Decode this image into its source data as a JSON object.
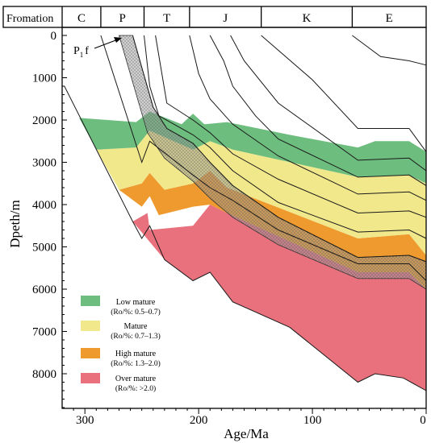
{
  "chart_data": {
    "type": "area",
    "xlabel": "Age/Ma",
    "ylabel": "Dpeth/m",
    "xlim": [
      320,
      0
    ],
    "ylim": [
      0,
      9000
    ],
    "x_ticks": [
      300,
      200,
      100,
      0
    ],
    "y_ticks": [
      0,
      1000,
      2000,
      3000,
      4000,
      5000,
      6000,
      7000,
      8000
    ],
    "header_title": "Fromation",
    "periods": [
      {
        "label": "C",
        "start": 320,
        "end": 286
      },
      {
        "label": "P",
        "start": 286,
        "end": 248
      },
      {
        "label": "T",
        "start": 248,
        "end": 208
      },
      {
        "label": "J",
        "start": 208,
        "end": 145
      },
      {
        "label": "K",
        "start": 145,
        "end": 65
      },
      {
        "label": "E",
        "start": 65,
        "end": 0
      }
    ],
    "annotation": {
      "label": "P",
      "subscript": "1",
      "suffix": "f",
      "x": 265,
      "y": 300
    },
    "maturity_zones": [
      {
        "name": "Over mature",
        "range": "(Ro/%: >2.0)",
        "color": "#e8717d",
        "top": [
          [
            258,
            4400
          ],
          [
            245,
            4200
          ],
          [
            243,
            4600
          ],
          [
            205,
            4500
          ],
          [
            190,
            4000
          ],
          [
            175,
            4200
          ],
          [
            60,
            5600
          ],
          [
            15,
            5600
          ],
          [
            0,
            6000
          ]
        ],
        "base": [
          [
            258,
            4400
          ],
          [
            230,
            5300
          ],
          [
            205,
            5800
          ],
          [
            190,
            5600
          ],
          [
            170,
            6300
          ],
          [
            120,
            6900
          ],
          [
            60,
            8200
          ],
          [
            45,
            8000
          ],
          [
            20,
            8100
          ],
          [
            0,
            8400
          ]
        ]
      },
      {
        "name": "High mature",
        "range": "(Ro/%: 1.3–2.0)",
        "color": "#ee9a2e",
        "top": [
          [
            270,
            3650
          ],
          [
            250,
            3500
          ],
          [
            243,
            3250
          ],
          [
            230,
            3650
          ],
          [
            205,
            3500
          ],
          [
            190,
            3200
          ],
          [
            175,
            3600
          ],
          [
            60,
            4800
          ],
          [
            15,
            4700
          ],
          [
            0,
            5200
          ]
        ],
        "base": [
          [
            270,
            3650
          ],
          [
            250,
            4050
          ],
          [
            243,
            3800
          ],
          [
            235,
            4250
          ],
          [
            205,
            4050
          ],
          [
            190,
            4000
          ],
          [
            175,
            4200
          ],
          [
            60,
            5600
          ],
          [
            15,
            5600
          ],
          [
            0,
            6000
          ]
        ]
      },
      {
        "name": "Mature",
        "range": "(Ro/%: 0.7–1.3)",
        "color": "#f1e88c",
        "top": [
          [
            290,
            2700
          ],
          [
            255,
            2650
          ],
          [
            243,
            2250
          ],
          [
            205,
            2700
          ],
          [
            190,
            2500
          ],
          [
            170,
            2700
          ],
          [
            60,
            3350
          ],
          [
            15,
            3300
          ],
          [
            0,
            3500
          ]
        ],
        "base": [
          [
            290,
            2700
          ],
          [
            270,
            3650
          ],
          [
            250,
            3500
          ],
          [
            243,
            3250
          ],
          [
            230,
            3650
          ],
          [
            205,
            3500
          ],
          [
            190,
            3200
          ],
          [
            175,
            3600
          ],
          [
            60,
            4800
          ],
          [
            15,
            4700
          ],
          [
            0,
            5200
          ]
        ]
      },
      {
        "name": "Low mature",
        "range": "(Ro/%: 0.5–0.7)",
        "color": "#6dbd7f",
        "top": [
          [
            305,
            1950
          ],
          [
            255,
            2050
          ],
          [
            243,
            1800
          ],
          [
            215,
            2100
          ],
          [
            205,
            1850
          ],
          [
            195,
            2100
          ],
          [
            175,
            2050
          ],
          [
            120,
            2350
          ],
          [
            60,
            2650
          ],
          [
            45,
            2500
          ],
          [
            15,
            2500
          ],
          [
            0,
            2750
          ]
        ],
        "base": [
          [
            305,
            1950
          ],
          [
            290,
            2700
          ],
          [
            255,
            2650
          ],
          [
            243,
            2250
          ],
          [
            205,
            2700
          ],
          [
            190,
            2500
          ],
          [
            170,
            2700
          ],
          [
            60,
            3350
          ],
          [
            15,
            3300
          ],
          [
            0,
            3500
          ]
        ]
      }
    ],
    "p1f_band": {
      "top": [
        [
          258,
          0
        ],
        [
          240,
          1700
        ],
        [
          228,
          2200
        ],
        [
          205,
          2550
        ],
        [
          190,
          3000
        ],
        [
          170,
          3550
        ],
        [
          130,
          4300
        ],
        [
          60,
          5250
        ],
        [
          15,
          5200
        ],
        [
          0,
          5350
        ]
      ],
      "base": [
        [
          270,
          0
        ],
        [
          245,
          2300
        ],
        [
          230,
          2900
        ],
        [
          205,
          3450
        ],
        [
          190,
          3850
        ],
        [
          170,
          4300
        ],
        [
          130,
          4950
        ],
        [
          60,
          5750
        ],
        [
          15,
          5750
        ],
        [
          0,
          6000
        ]
      ]
    },
    "strata_lines": [
      [
        [
          286,
          0
        ],
        [
          250,
          3000
        ],
        [
          243,
          2500
        ],
        [
          205,
          3300
        ],
        [
          190,
          3600
        ],
        [
          170,
          3900
        ],
        [
          130,
          4600
        ],
        [
          60,
          5400
        ],
        [
          15,
          5400
        ],
        [
          0,
          5800
        ]
      ],
      [
        [
          258,
          0
        ],
        [
          240,
          1700
        ],
        [
          228,
          2200
        ],
        [
          205,
          2550
        ],
        [
          190,
          3000
        ],
        [
          170,
          3550
        ],
        [
          130,
          4300
        ],
        [
          60,
          5250
        ],
        [
          15,
          5200
        ],
        [
          0,
          5350
        ]
      ],
      [
        [
          248,
          0
        ],
        [
          243,
          1200
        ],
        [
          235,
          1900
        ],
        [
          205,
          2350
        ],
        [
          190,
          2650
        ],
        [
          170,
          3200
        ],
        [
          130,
          3950
        ],
        [
          60,
          4650
        ],
        [
          15,
          4600
        ],
        [
          0,
          4800
        ]
      ],
      [
        [
          238,
          0
        ],
        [
          228,
          1600
        ],
        [
          205,
          2000
        ],
        [
          190,
          2300
        ],
        [
          170,
          2800
        ],
        [
          130,
          3400
        ],
        [
          60,
          4200
        ],
        [
          15,
          4150
        ],
        [
          0,
          4300
        ]
      ],
      [
        [
          208,
          0
        ],
        [
          200,
          900
        ],
        [
          190,
          1500
        ],
        [
          170,
          2100
        ],
        [
          130,
          2850
        ],
        [
          60,
          3750
        ],
        [
          15,
          3700
        ],
        [
          0,
          3900
        ]
      ],
      [
        [
          190,
          0
        ],
        [
          178,
          600
        ],
        [
          170,
          1200
        ],
        [
          150,
          1900
        ],
        [
          130,
          2450
        ],
        [
          60,
          3350
        ],
        [
          15,
          3300
        ],
        [
          0,
          3550
        ]
      ],
      [
        [
          172,
          0
        ],
        [
          160,
          600
        ],
        [
          130,
          1600
        ],
        [
          60,
          2950
        ],
        [
          15,
          2900
        ],
        [
          0,
          3200
        ]
      ],
      [
        [
          145,
          0
        ],
        [
          100,
          1050
        ],
        [
          60,
          2200
        ],
        [
          15,
          2200
        ],
        [
          0,
          2750
        ]
      ],
      [
        [
          65,
          0
        ],
        [
          40,
          500
        ],
        [
          15,
          600
        ],
        [
          0,
          700
        ]
      ]
    ],
    "basement_line": [
      [
        318,
        1200
      ],
      [
        258,
        4400
      ],
      [
        250,
        4800
      ],
      [
        243,
        4500
      ],
      [
        230,
        5300
      ],
      [
        205,
        5800
      ],
      [
        190,
        5600
      ],
      [
        170,
        6300
      ],
      [
        120,
        6900
      ],
      [
        60,
        8200
      ],
      [
        45,
        8000
      ],
      [
        20,
        8100
      ],
      [
        0,
        8400
      ]
    ],
    "legend_position": "bottom-left"
  }
}
